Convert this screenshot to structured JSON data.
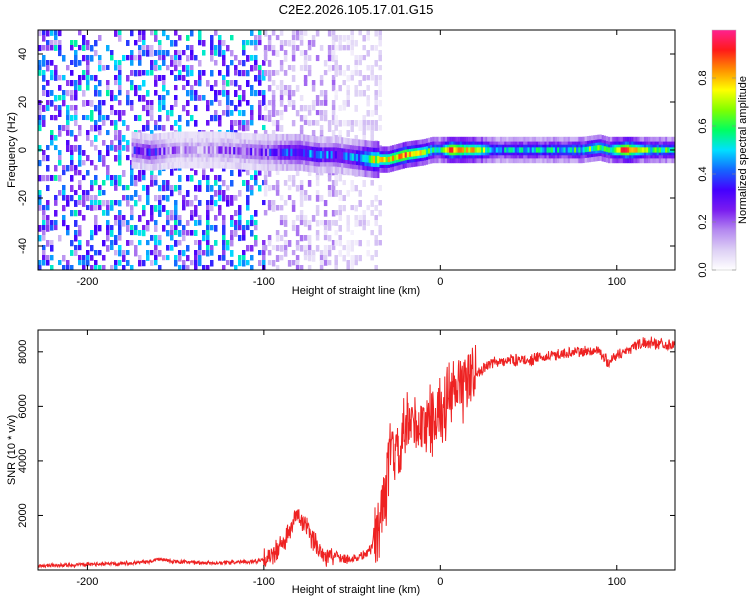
{
  "title": "C2E2.2026.105.17.01.G15",
  "chart_data": [
    {
      "type": "heatmap",
      "name": "spectrogram",
      "xlabel": "Height of straight line (km)",
      "ylabel": "Frequency (Hz)",
      "xlim": [
        -228,
        133
      ],
      "ylim": [
        -50,
        50
      ],
      "xticks": [
        -200,
        -100,
        0,
        100
      ],
      "yticks": [
        -40,
        -20,
        0,
        20,
        40
      ],
      "colorbar": {
        "label": "Normalized spectral amplitude",
        "range": [
          0.0,
          1.0
        ],
        "ticks": [
          0.0,
          0.2,
          0.4,
          0.6,
          0.8
        ],
        "tick_labels": [
          "0.0",
          "0.2",
          "0.4",
          "0.6",
          "0.8"
        ],
        "stops": [
          "#ffffff",
          "#ddd0f5",
          "#b488f0",
          "#7a1cf0",
          "#4400ff",
          "#1466ff",
          "#00e0ff",
          "#00ff60",
          "#80ff00",
          "#ffff00",
          "#ff9000",
          "#ff1a1a",
          "#ff2090"
        ]
      },
      "ridge": [
        {
          "x": -175,
          "y": 0,
          "amp": 0.25
        },
        {
          "x": -165,
          "y": -1,
          "amp": 0.3
        },
        {
          "x": -150,
          "y": 0,
          "amp": 0.15
        },
        {
          "x": -125,
          "y": 0,
          "amp": 0.18
        },
        {
          "x": -100,
          "y": -1,
          "amp": 0.25
        },
        {
          "x": -90,
          "y": -1,
          "amp": 0.35
        },
        {
          "x": -80,
          "y": -1,
          "amp": 0.4
        },
        {
          "x": -70,
          "y": -2,
          "amp": 0.4
        },
        {
          "x": -60,
          "y": -2,
          "amp": 0.35
        },
        {
          "x": -50,
          "y": -3,
          "amp": 0.4
        },
        {
          "x": -38,
          "y": -4,
          "amp": 0.7
        },
        {
          "x": -30,
          "y": -4,
          "amp": 0.75
        },
        {
          "x": -20,
          "y": -2,
          "amp": 0.85
        },
        {
          "x": -10,
          "y": -1,
          "amp": 0.7
        },
        {
          "x": -5,
          "y": 0,
          "amp": 0.55
        },
        {
          "x": 0,
          "y": 0,
          "amp": 0.55
        },
        {
          "x": 5,
          "y": 0,
          "amp": 0.9
        },
        {
          "x": 12,
          "y": 0,
          "amp": 0.8
        },
        {
          "x": 20,
          "y": 0,
          "amp": 0.75
        },
        {
          "x": 30,
          "y": 0,
          "amp": 0.5
        },
        {
          "x": 40,
          "y": 0,
          "amp": 0.45
        },
        {
          "x": 50,
          "y": 0,
          "amp": 0.5
        },
        {
          "x": 60,
          "y": 0,
          "amp": 0.5
        },
        {
          "x": 70,
          "y": 0,
          "amp": 0.5
        },
        {
          "x": 80,
          "y": 0,
          "amp": 0.55
        },
        {
          "x": 90,
          "y": 1,
          "amp": 0.65
        },
        {
          "x": 95,
          "y": 0,
          "amp": 0.55
        },
        {
          "x": 105,
          "y": 0,
          "amp": 0.95
        },
        {
          "x": 115,
          "y": 0,
          "amp": 0.6
        },
        {
          "x": 125,
          "y": 0,
          "amp": 0.55
        },
        {
          "x": 133,
          "y": 0,
          "amp": 0.55
        }
      ],
      "noise_bands": [
        {
          "x": [
            -228,
            -100
          ],
          "amp": 0.55
        },
        {
          "x": [
            -100,
            -60
          ],
          "amp": 0.2
        },
        {
          "x": [
            -60,
            -35
          ],
          "amp": 0.12
        }
      ]
    },
    {
      "type": "line",
      "name": "snr",
      "xlabel": "Height of straight line (km)",
      "ylabel": "SNR (10 * v/v)",
      "xlim": [
        -228,
        133
      ],
      "ylim": [
        0,
        8800
      ],
      "xticks": [
        -200,
        -100,
        0,
        100
      ],
      "yticks": [
        2000,
        4000,
        6000,
        8000
      ],
      "color": "#ee2222",
      "series": [
        {
          "name": "SNR",
          "x": [
            -228,
            -200,
            -180,
            -165,
            -160,
            -150,
            -130,
            -110,
            -100,
            -95,
            -90,
            -85,
            -82,
            -80,
            -75,
            -70,
            -65,
            -60,
            -55,
            -50,
            -45,
            -40,
            -35,
            -33,
            -30,
            -28,
            -25,
            -22,
            -20,
            -15,
            -10,
            -5,
            0,
            5,
            10,
            15,
            20,
            25,
            30,
            40,
            50,
            60,
            70,
            80,
            90,
            95,
            100,
            105,
            110,
            115,
            120,
            125,
            133
          ],
          "y": [
            150,
            200,
            250,
            300,
            400,
            300,
            250,
            300,
            350,
            550,
            900,
            1400,
            2000,
            1950,
            1400,
            900,
            500,
            550,
            450,
            400,
            500,
            700,
            1500,
            2600,
            3000,
            4500,
            4000,
            4400,
            5100,
            5300,
            5200,
            5600,
            5800,
            6200,
            6600,
            7000,
            7200,
            7400,
            7600,
            7700,
            7700,
            7800,
            7950,
            8000,
            8050,
            7600,
            7900,
            8000,
            8250,
            8300,
            8350,
            8300,
            8250
          ]
        }
      ]
    }
  ]
}
